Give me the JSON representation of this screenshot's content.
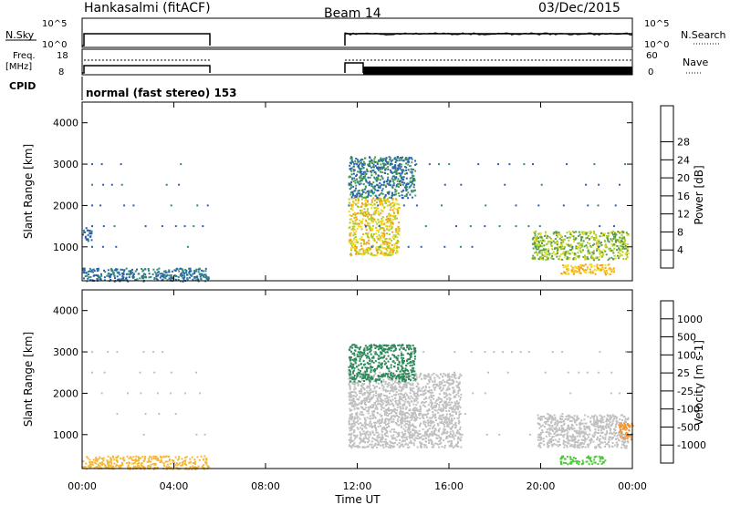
{
  "header": {
    "station": "Hankasalmi (fitACF)",
    "beam": "Beam 14",
    "date": "03/Dec/2015"
  },
  "top_panel": {
    "left_label": "N.Sky",
    "left_ticks": [
      "10^5",
      "10^0"
    ],
    "right_ticks": [
      "10^5",
      "10^0"
    ],
    "right_label": "N.Search"
  },
  "freq_panel": {
    "left_label_1": "Freq.",
    "left_label_2": "[MHz]",
    "left_ticks": [
      "18",
      "8"
    ],
    "right_ticks": [
      "60",
      "0"
    ],
    "right_label": "Nave"
  },
  "cpid": {
    "label": "CPID",
    "value": "normal (fast stereo) 153"
  },
  "x_axis": {
    "title": "Time UT",
    "ticks": [
      "00:00",
      "04:00",
      "08:00",
      "12:00",
      "16:00",
      "20:00",
      "00:00"
    ]
  },
  "y_axis": {
    "title": "Slant Range [km]",
    "ticks": [
      "1000",
      "2000",
      "3000",
      "4000"
    ]
  },
  "power_scale": {
    "title": "Power [dB]",
    "labels": [
      "4",
      "8",
      "12",
      "16",
      "20",
      "24",
      "28"
    ],
    "colors": [
      "#0a22e6",
      "#2b5fb0",
      "#2e8a74",
      "#5a9e4a",
      "#aacd2c",
      "#f0dc1e",
      "#f4a01c",
      "#ec5a14",
      "#e01010"
    ]
  },
  "velocity_scale": {
    "title": "Velocity [m s-1]",
    "labels": [
      "1000",
      "500",
      "100",
      "25",
      "-25",
      "-100",
      "-500",
      "-1000"
    ],
    "colors": [
      "#1e3cc8",
      "#2e6aaa",
      "#2e8a5a",
      "#4ec83c",
      "#c0c0c0",
      "#f4b83c",
      "#f49428",
      "#ec6418",
      "#e01010"
    ]
  },
  "chart_data": [
    {
      "type": "heatmap",
      "title": "Power",
      "xlabel": "Time UT",
      "ylabel": "Slant Range [km]",
      "xlim": [
        0,
        24
      ],
      "ylim": [
        180,
        4500
      ],
      "colorbar_label": "Power [dB]",
      "colorbar_ticks": [
        4,
        8,
        12,
        16,
        20,
        24,
        28
      ],
      "data_gaps_hours": [
        [
          5.5,
          11.5
        ]
      ],
      "regions": [
        {
          "time_range": [
            0.0,
            5.5
          ],
          "range_km": [
            180,
            500
          ],
          "power_db": [
            4,
            12
          ]
        },
        {
          "time_range": [
            0.0,
            0.4
          ],
          "range_km": [
            1150,
            1500
          ],
          "power_db": [
            4,
            10
          ]
        },
        {
          "time_range": [
            11.6,
            13.8
          ],
          "range_km": [
            800,
            2200
          ],
          "power_db": [
            16,
            28
          ]
        },
        {
          "time_range": [
            11.6,
            14.5
          ],
          "range_km": [
            2200,
            3200
          ],
          "power_db": [
            4,
            14
          ]
        },
        {
          "time_range": [
            19.6,
            23.8
          ],
          "range_km": [
            700,
            1400
          ],
          "power_db": [
            12,
            22
          ]
        },
        {
          "time_range": [
            20.8,
            23.2
          ],
          "range_km": [
            350,
            600
          ],
          "power_db": [
            20,
            28
          ]
        }
      ]
    },
    {
      "type": "heatmap",
      "title": "Velocity",
      "xlabel": "Time UT",
      "ylabel": "Slant Range [km]",
      "xlim": [
        0,
        24
      ],
      "ylim": [
        180,
        4500
      ],
      "colorbar_label": "Velocity [m s-1]",
      "colorbar_ticks": [
        1000,
        500,
        100,
        25,
        -25,
        -100,
        -500,
        -1000
      ],
      "data_gaps_hours": [
        [
          5.5,
          11.5
        ]
      ],
      "regions": [
        {
          "time_range": [
            0.0,
            5.5
          ],
          "range_km": [
            180,
            500
          ],
          "velocity": [
            -100,
            -25
          ]
        },
        {
          "time_range": [
            11.6,
            16.5
          ],
          "range_km": [
            700,
            2500
          ],
          "velocity": [
            -25,
            25
          ]
        },
        {
          "time_range": [
            11.6,
            14.5
          ],
          "range_km": [
            2300,
            3200
          ],
          "velocity": [
            100,
            500
          ]
        },
        {
          "time_range": [
            19.8,
            23.8
          ],
          "range_km": [
            700,
            1500
          ],
          "velocity": [
            -25,
            25
          ]
        },
        {
          "time_range": [
            20.8,
            22.8
          ],
          "range_km": [
            300,
            500
          ],
          "velocity": [
            25,
            100
          ]
        },
        {
          "time_range": [
            23.4,
            24.0
          ],
          "range_km": [
            900,
            1300
          ],
          "velocity": [
            -500,
            -100
          ]
        }
      ]
    }
  ]
}
